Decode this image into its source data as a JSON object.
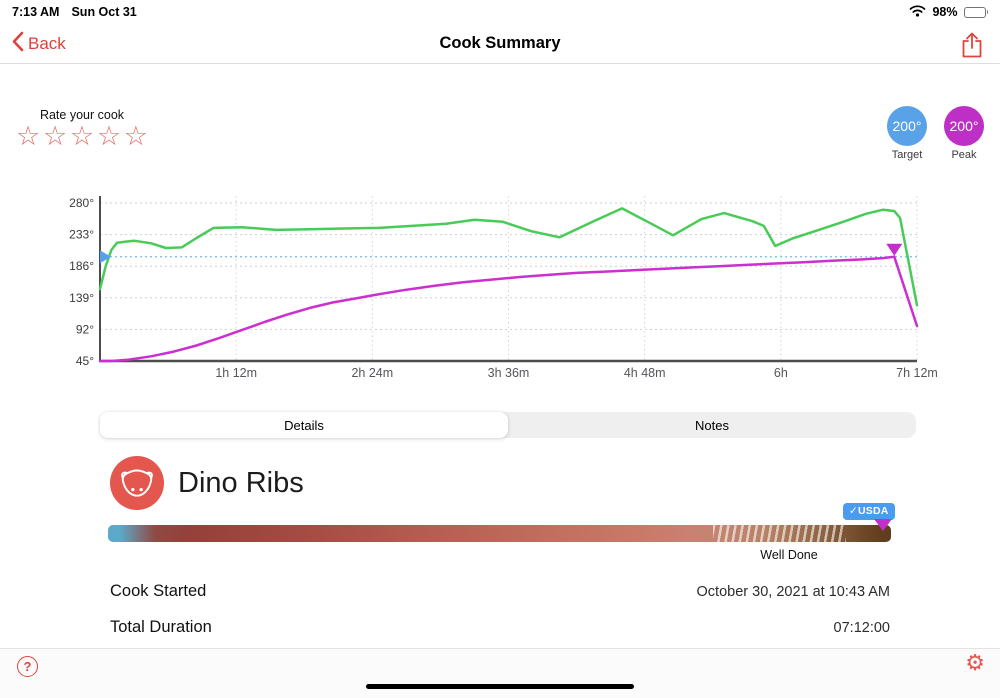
{
  "status_bar": {
    "time": "7:13 AM",
    "date": "Sun Oct 31",
    "battery_percent": "98%"
  },
  "nav": {
    "back_label": "Back",
    "title": "Cook Summary"
  },
  "rating": {
    "label": "Rate your cook",
    "star_glyph": "☆",
    "count": 5
  },
  "temp_badges": {
    "target": {
      "value": "200°",
      "label": "Target",
      "color": "#5aa2e8"
    },
    "peak": {
      "value": "200°",
      "label": "Peak",
      "color": "#be2fc5"
    }
  },
  "chart_data": {
    "type": "line",
    "x_axis": {
      "ticks": [
        {
          "hours": 1.2,
          "label": "1h 12m"
        },
        {
          "hours": 2.4,
          "label": "2h 24m"
        },
        {
          "hours": 3.6,
          "label": "3h 36m"
        },
        {
          "hours": 4.8,
          "label": "4h 48m"
        },
        {
          "hours": 6.0,
          "label": "6h"
        },
        {
          "hours": 7.2,
          "label": "7h 12m"
        }
      ]
    },
    "y_axis": {
      "ticks": [
        {
          "value": 280,
          "label": "280°"
        },
        {
          "value": 233,
          "label": "233°"
        },
        {
          "value": 186,
          "label": "186°"
        },
        {
          "value": 139,
          "label": "139°"
        },
        {
          "value": 92,
          "label": "92°"
        },
        {
          "value": 45,
          "label": "45°"
        }
      ]
    },
    "xlim_hours": [
      0,
      7.2
    ],
    "ylim": [
      45,
      287
    ],
    "grid": {
      "h_color": "#cfcfcf",
      "v_color": "#d4d4d4",
      "axis_color": "#4d4d4d"
    },
    "target_line": {
      "temp": 200,
      "color": "#79b7f2"
    },
    "series": [
      {
        "name": "ambient_temperature",
        "color": "#49cb57",
        "points": [
          [
            0,
            152
          ],
          [
            0.05,
            186
          ],
          [
            0.1,
            210
          ],
          [
            0.15,
            221
          ],
          [
            0.3,
            224
          ],
          [
            0.45,
            220
          ],
          [
            0.58,
            213
          ],
          [
            0.72,
            214
          ],
          [
            0.85,
            228
          ],
          [
            1.0,
            243
          ],
          [
            1.25,
            244
          ],
          [
            1.55,
            240
          ],
          [
            1.85,
            241
          ],
          [
            2.15,
            242
          ],
          [
            2.45,
            243
          ],
          [
            2.75,
            246
          ],
          [
            3.05,
            249
          ],
          [
            3.3,
            255
          ],
          [
            3.55,
            252
          ],
          [
            3.8,
            238
          ],
          [
            4.05,
            229
          ],
          [
            4.35,
            253
          ],
          [
            4.6,
            272
          ],
          [
            4.85,
            250
          ],
          [
            5.05,
            232
          ],
          [
            5.3,
            256
          ],
          [
            5.5,
            265
          ],
          [
            5.75,
            253
          ],
          [
            5.85,
            246
          ],
          [
            5.95,
            216
          ],
          [
            6.1,
            227
          ],
          [
            6.3,
            238
          ],
          [
            6.55,
            252
          ],
          [
            6.75,
            264
          ],
          [
            6.9,
            270
          ],
          [
            7.0,
            268
          ],
          [
            7.05,
            258
          ],
          [
            7.2,
            128
          ]
        ]
      },
      {
        "name": "internal_temperature",
        "color": "#cb2fd0",
        "points": [
          [
            0,
            45
          ],
          [
            0.1,
            45
          ],
          [
            0.25,
            47
          ],
          [
            0.45,
            52
          ],
          [
            0.65,
            59
          ],
          [
            0.85,
            68
          ],
          [
            1.05,
            79
          ],
          [
            1.25,
            91
          ],
          [
            1.45,
            103
          ],
          [
            1.65,
            114
          ],
          [
            1.85,
            124
          ],
          [
            2.05,
            132
          ],
          [
            2.25,
            138
          ],
          [
            2.45,
            144
          ],
          [
            2.7,
            151
          ],
          [
            2.95,
            157
          ],
          [
            3.2,
            162
          ],
          [
            3.45,
            166
          ],
          [
            3.7,
            170
          ],
          [
            3.95,
            173
          ],
          [
            4.2,
            176
          ],
          [
            4.45,
            178
          ],
          [
            4.7,
            180
          ],
          [
            4.95,
            182
          ],
          [
            5.2,
            184
          ],
          [
            5.45,
            186
          ],
          [
            5.7,
            188
          ],
          [
            5.95,
            190
          ],
          [
            6.2,
            192
          ],
          [
            6.45,
            194
          ],
          [
            6.7,
            196
          ],
          [
            6.9,
            198
          ],
          [
            7.0,
            200
          ],
          [
            7.2,
            97
          ]
        ]
      }
    ],
    "markers": [
      {
        "name": "target-start",
        "shape": "triangle-right",
        "color": "#55a0e8",
        "hours": 0,
        "temp": 200
      },
      {
        "name": "peak",
        "shape": "triangle-down",
        "color": "#c42ecb",
        "hours": 7.0,
        "temp": 200
      }
    ]
  },
  "tabs": [
    {
      "label": "Details",
      "selected": true
    },
    {
      "label": "Notes",
      "selected": false
    }
  ],
  "food": {
    "name": "Dino Ribs"
  },
  "doneness": {
    "usda_label": "✓USDA",
    "level_label": "Well Done"
  },
  "details": [
    {
      "label": "Cook Started",
      "value": "October 30, 2021 at 10:43 AM"
    },
    {
      "label": "Total Duration",
      "value": "07:12:00"
    }
  ],
  "icons": {
    "help": "?",
    "gear": "⚙"
  }
}
